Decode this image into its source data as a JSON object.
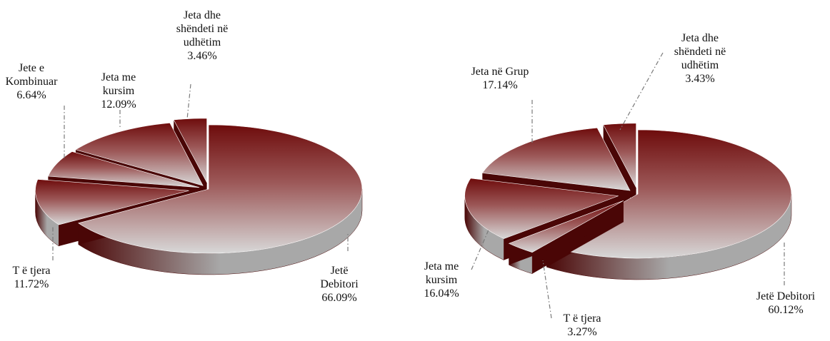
{
  "chart_data": [
    {
      "type": "pie",
      "title": "",
      "slices": [
        {
          "name": "Jetë Debitori",
          "label_lines": [
            "Jetë",
            "Debitori"
          ],
          "value": 66.09,
          "value_text": "66.09%"
        },
        {
          "name": "T ë tjera",
          "label_lines": [
            "T ë tjera"
          ],
          "value": 11.72,
          "value_text": "11.72%"
        },
        {
          "name": "Jete e Kombinuar",
          "label_lines": [
            "Jete e",
            "Kombinuar"
          ],
          "value": 6.64,
          "value_text": "6.64%"
        },
        {
          "name": "Jeta me kursim",
          "label_lines": [
            "Jeta me",
            "kursim"
          ],
          "value": 12.09,
          "value_text": "12.09%"
        },
        {
          "name": "Jeta dhe shëndeti në udhëtim",
          "label_lines": [
            "Jeta dhe",
            "shëndeti në",
            "udhëtim"
          ],
          "value": 3.46,
          "value_text": "3.46%"
        }
      ]
    },
    {
      "type": "pie",
      "title": "",
      "slices": [
        {
          "name": "Jetë Debitori",
          "label_lines": [
            "Jetë Debitori"
          ],
          "value": 60.12,
          "value_text": "60.12%"
        },
        {
          "name": "T ë tjera",
          "label_lines": [
            "T ë tjera"
          ],
          "value": 3.27,
          "value_text": "3.27%"
        },
        {
          "name": "Jeta me kursim",
          "label_lines": [
            "Jeta me",
            "kursim"
          ],
          "value": 16.04,
          "value_text": "16.04%"
        },
        {
          "name": "Jeta në Grup",
          "label_lines": [
            "Jeta në Grup"
          ],
          "value": 17.14,
          "value_text": "17.14%"
        },
        {
          "name": "Jeta dhe shëndeti në udhëtim",
          "label_lines": [
            "Jeta dhe",
            "shëndeti në",
            "udhëtim"
          ],
          "value": 3.43,
          "value_text": "3.43%"
        }
      ]
    }
  ],
  "colors": {
    "slice_dark": "#6e0c0c",
    "slice_mid": "#9c5858",
    "slice_light": "#d8d8d8",
    "side_dark": "#4a0606",
    "side_light": "#a8a8a8",
    "leader": "#7a7a7a"
  }
}
